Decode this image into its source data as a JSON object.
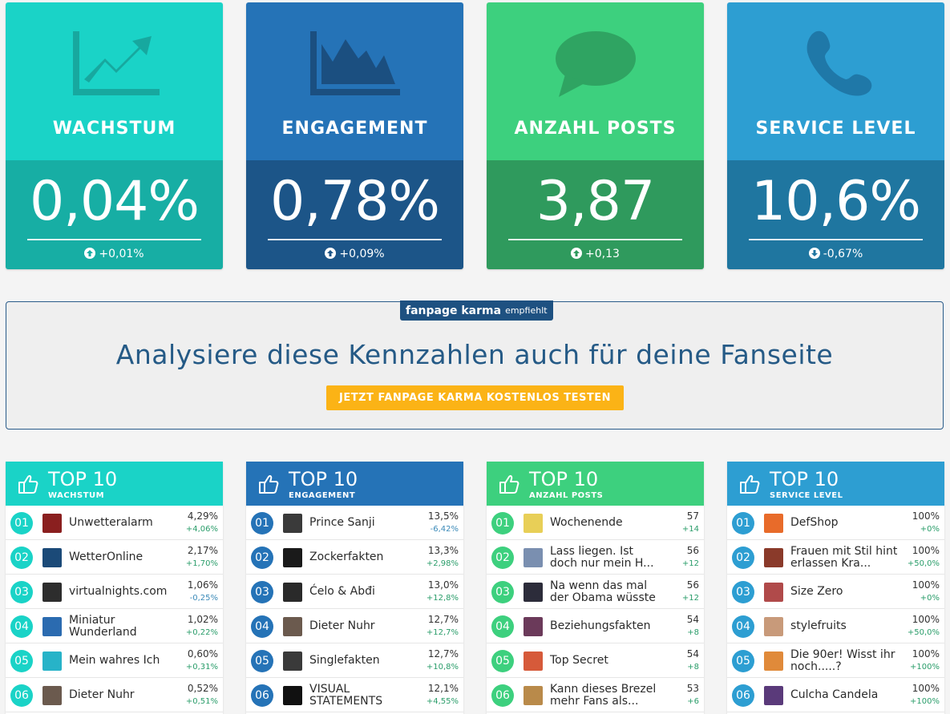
{
  "kpis": [
    {
      "title": "WACHSTUM",
      "value": "0,04%",
      "delta": "+0,01%",
      "direction": "up",
      "icon": "trending-up-icon",
      "color_top": "#1ad3c7",
      "color_bottom": "#17aea4"
    },
    {
      "title": "ENGAGEMENT",
      "value": "0,78%",
      "delta": "+0,09%",
      "direction": "up",
      "icon": "area-chart-icon",
      "color_top": "#2573b7",
      "color_bottom": "#1c5588"
    },
    {
      "title": "ANZAHL POSTS",
      "value": "3,87",
      "delta": "+0,13",
      "direction": "up",
      "icon": "speech-bubble-icon",
      "color_top": "#3dd07e",
      "color_bottom": "#2f9a5d"
    },
    {
      "title": "SERVICE LEVEL",
      "value": "10,6%",
      "delta": "-0,67%",
      "direction": "down",
      "icon": "phone-icon",
      "color_top": "#2d9ed2",
      "color_bottom": "#1f76a0"
    }
  ],
  "cta": {
    "brand": "fanpage karma",
    "recommends": "empfiehlt",
    "headline": "Analysiere diese Kennzahlen auch für deine Fanseite",
    "button": "JETZT FANPAGE KARMA KOSTENLOS TESTEN"
  },
  "top10": [
    {
      "title": "TOP 10",
      "subtitle": "WACHSTUM",
      "color": "#1ad3c7",
      "rows": [
        {
          "rank": "01",
          "name": "Unwetteralarm",
          "value": "4,29%",
          "change": "+4,06%",
          "positive": true,
          "avatar_color": "#8a1f1f"
        },
        {
          "rank": "02",
          "name": "WetterOnline",
          "value": "2,17%",
          "change": "+1,70%",
          "positive": true,
          "avatar_color": "#1b4a78"
        },
        {
          "rank": "03",
          "name": "virtualnights.com",
          "value": "1,06%",
          "change": "-0,25%",
          "positive": false,
          "avatar_color": "#2d2d2d"
        },
        {
          "rank": "04",
          "name": "Miniatur Wunderland",
          "value": "1,02%",
          "change": "+0,22%",
          "positive": true,
          "avatar_color": "#2b6bb0"
        },
        {
          "rank": "05",
          "name": "Mein wahres Ich",
          "value": "0,60%",
          "change": "+0,31%",
          "positive": true,
          "avatar_color": "#27b3c8"
        },
        {
          "rank": "06",
          "name": "Dieter Nuhr",
          "value": "0,52%",
          "change": "+0,51%",
          "positive": true,
          "avatar_color": "#6b5a4e"
        }
      ]
    },
    {
      "title": "TOP 10",
      "subtitle": "ENGAGEMENT",
      "color": "#2573b7",
      "rows": [
        {
          "rank": "01",
          "name": "Prince Sanji",
          "value": "13,5%",
          "change": "-6,42%",
          "positive": false,
          "avatar_color": "#3a3a3a"
        },
        {
          "rank": "02",
          "name": "Zockerfakten",
          "value": "13,3%",
          "change": "+2,98%",
          "positive": true,
          "avatar_color": "#1a1a1a"
        },
        {
          "rank": "03",
          "name": "Ćelo & Abđi",
          "value": "13,0%",
          "change": "+12,8%",
          "positive": true,
          "avatar_color": "#2a2a2a"
        },
        {
          "rank": "04",
          "name": "Dieter Nuhr",
          "value": "12,7%",
          "change": "+12,7%",
          "positive": true,
          "avatar_color": "#6b5a4e"
        },
        {
          "rank": "05",
          "name": "Singlefakten",
          "value": "12,7%",
          "change": "+10,8%",
          "positive": true,
          "avatar_color": "#3a3a3a"
        },
        {
          "rank": "06",
          "name": "VISUAL STATEMENTS",
          "value": "12,1%",
          "change": "+4,55%",
          "positive": true,
          "avatar_color": "#111111"
        }
      ]
    },
    {
      "title": "TOP 10",
      "subtitle": "ANZAHL POSTS",
      "color": "#3dd07e",
      "rows": [
        {
          "rank": "01",
          "name": "Wochenende",
          "value": "57",
          "change": "+14",
          "positive": true,
          "avatar_color": "#e8cf57"
        },
        {
          "rank": "02",
          "name": "Lass liegen. Ist doch nur mein H...",
          "value": "56",
          "change": "+12",
          "positive": true,
          "avatar_color": "#7a8fb0"
        },
        {
          "rank": "03",
          "name": "Na wenn das mal der Obama wüsste",
          "value": "56",
          "change": "+12",
          "positive": true,
          "avatar_color": "#2c2c3a"
        },
        {
          "rank": "04",
          "name": "Beziehungsfakten",
          "value": "54",
          "change": "+8",
          "positive": true,
          "avatar_color": "#6b3a5a"
        },
        {
          "rank": "05",
          "name": "Top Secret",
          "value": "54",
          "change": "+8",
          "positive": true,
          "avatar_color": "#d65a3a"
        },
        {
          "rank": "06",
          "name": "Kann dieses Brezel mehr Fans als...",
          "value": "53",
          "change": "+6",
          "positive": true,
          "avatar_color": "#b98a4a"
        }
      ]
    },
    {
      "title": "TOP 10",
      "subtitle": "SERVICE LEVEL",
      "color": "#2d9ed2",
      "rows": [
        {
          "rank": "01",
          "name": "DefShop",
          "value": "100%",
          "change": "+0%",
          "positive": true,
          "avatar_color": "#e86b2a"
        },
        {
          "rank": "02",
          "name": "Frauen mit Stil hint erlassen Kra...",
          "value": "100%",
          "change": "+50,0%",
          "positive": true,
          "avatar_color": "#8a3a2a"
        },
        {
          "rank": "03",
          "name": "Size Zero",
          "value": "100%",
          "change": "+0%",
          "positive": true,
          "avatar_color": "#b04a4a"
        },
        {
          "rank": "04",
          "name": "stylefruits",
          "value": "100%",
          "change": "+50,0%",
          "positive": true,
          "avatar_color": "#c89a7a"
        },
        {
          "rank": "05",
          "name": "Die 90er! Wisst ihr noch.....?",
          "value": "100%",
          "change": "+100%",
          "positive": true,
          "avatar_color": "#e08a3a"
        },
        {
          "rank": "06",
          "name": "Culcha Candela",
          "value": "100%",
          "change": "+100%",
          "positive": true,
          "avatar_color": "#5a3a7a"
        }
      ]
    }
  ]
}
